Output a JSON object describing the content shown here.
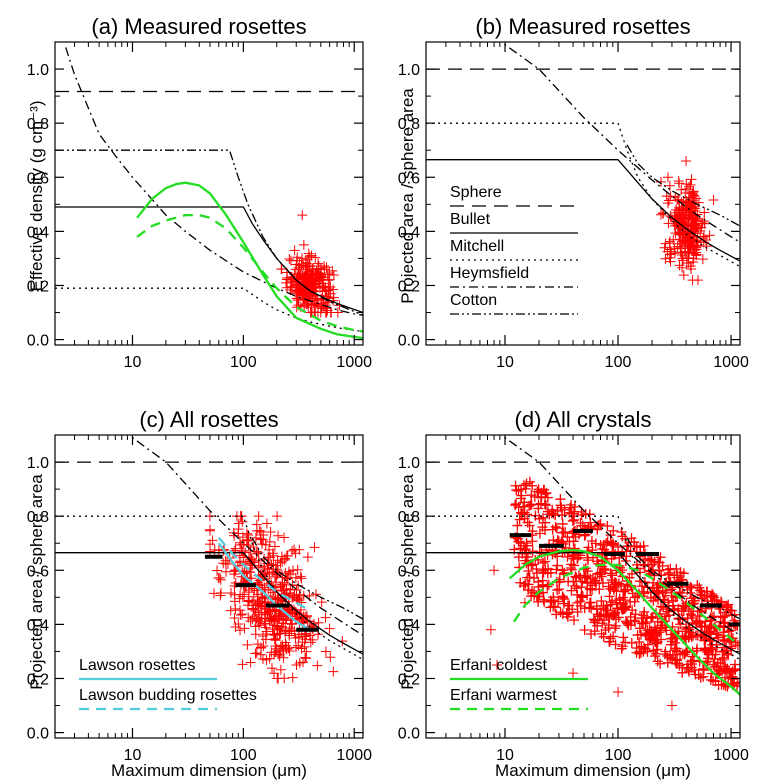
{
  "colors": {
    "axis": "#000000",
    "data_points": "#ff0000",
    "green": "#22dd22",
    "cyan": "#55ccdd",
    "black": "#000000"
  },
  "chart_data": [
    {
      "type": "scatter",
      "title": "(a) Measured rosettes",
      "xlabel": "",
      "ylabel": "Effective density (g cm⁻³)",
      "xscale": "log",
      "xlim": [
        2,
        1200
      ],
      "ylim": [
        -0.02,
        1.1
      ],
      "xticks": [
        10,
        100,
        1000
      ],
      "xtick_labels": [
        "10",
        "100",
        "1000"
      ],
      "yticks": [
        0.0,
        0.2,
        0.4,
        0.6,
        0.8,
        1.0
      ],
      "ytick_labels": [
        "0.0",
        "0.2",
        "0.4",
        "0.6",
        "0.8",
        "1.0"
      ],
      "legend": [],
      "series": [
        {
          "name": "Sphere",
          "style": "longdash",
          "x": [
            2,
            1200
          ],
          "y": [
            0.917,
            0.917
          ]
        },
        {
          "name": "Bullet",
          "style": "solid",
          "x": [
            2,
            100,
            120,
            150,
            200,
            300,
            400,
            600,
            800,
            1200
          ],
          "y": [
            0.49,
            0.49,
            0.43,
            0.37,
            0.3,
            0.22,
            0.18,
            0.145,
            0.125,
            0.1
          ]
        },
        {
          "name": "Mitchell",
          "style": "dotted",
          "x": [
            2,
            100,
            150,
            200,
            300,
            400,
            600,
            800,
            1200
          ],
          "y": [
            0.19,
            0.19,
            0.14,
            0.11,
            0.08,
            0.065,
            0.05,
            0.04,
            0.03
          ]
        },
        {
          "name": "Heymsfield",
          "style": "dashdot",
          "x": [
            2.5,
            3,
            5,
            7,
            10,
            20,
            30,
            50,
            100,
            200,
            300,
            500,
            700,
            1000,
            1200
          ],
          "y": [
            1.08,
            0.98,
            0.76,
            0.68,
            0.6,
            0.46,
            0.4,
            0.33,
            0.25,
            0.19,
            0.16,
            0.13,
            0.11,
            0.095,
            0.09
          ]
        },
        {
          "name": "Cotton",
          "style": "dashdotdot",
          "x": [
            2,
            75,
            90,
            110,
            150,
            200,
            300,
            400,
            600,
            800,
            1200
          ],
          "y": [
            0.7,
            0.7,
            0.6,
            0.5,
            0.38,
            0.3,
            0.22,
            0.18,
            0.14,
            0.12,
            0.09
          ]
        },
        {
          "name": "",
          "style": "solid",
          "color": "green",
          "x": [
            11,
            15,
            20,
            25,
            30,
            40,
            50,
            70,
            100,
            150,
            200,
            300,
            500,
            700,
            1000,
            1200
          ],
          "y": [
            0.45,
            0.52,
            0.56,
            0.575,
            0.58,
            0.57,
            0.54,
            0.46,
            0.36,
            0.24,
            0.16,
            0.08,
            0.04,
            0.02,
            0.01,
            0.005
          ]
        },
        {
          "name": "",
          "style": "dashed",
          "color": "green",
          "x": [
            11,
            15,
            20,
            30,
            40,
            50,
            70,
            100,
            150,
            200,
            300,
            500,
            700,
            1000,
            1200
          ],
          "y": [
            0.38,
            0.42,
            0.44,
            0.46,
            0.46,
            0.45,
            0.41,
            0.34,
            0.25,
            0.19,
            0.12,
            0.07,
            0.05,
            0.035,
            0.03
          ]
        }
      ],
      "scatter_cloud": {
        "x_range": [
          220,
          800
        ],
        "y_range": [
          0.1,
          0.35
        ],
        "center": [
          400,
          0.2
        ],
        "outliers": [
          [
            340,
            0.46
          ],
          [
            290,
            0.33
          ]
        ]
      }
    },
    {
      "type": "scatter",
      "title": "(b) Measured rosettes",
      "xlabel": "",
      "ylabel": "Projected area / sphere area",
      "xscale": "log",
      "xlim": [
        2,
        1200
      ],
      "ylim": [
        -0.02,
        1.1
      ],
      "xticks": [
        10,
        100,
        1000
      ],
      "xtick_labels": [
        "10",
        "100",
        "1000"
      ],
      "yticks": [
        0.0,
        0.2,
        0.4,
        0.6,
        0.8,
        1.0
      ],
      "ytick_labels": [
        "0.0",
        "0.2",
        "0.4",
        "0.6",
        "0.8",
        "1.0"
      ],
      "legend": [
        {
          "label": "Sphere",
          "style": "longdash"
        },
        {
          "label": "Bullet",
          "style": "solid"
        },
        {
          "label": "Mitchell",
          "style": "dotted"
        },
        {
          "label": "Heymsfield",
          "style": "dashdot"
        },
        {
          "label": "Cotton",
          "style": "dashdotdot"
        }
      ],
      "series": [
        {
          "name": "Sphere",
          "style": "longdash",
          "x": [
            2,
            1200
          ],
          "y": [
            1.0,
            1.0
          ]
        },
        {
          "name": "Bullet",
          "style": "solid",
          "x": [
            2,
            100,
            150,
            200,
            300,
            400,
            600,
            800,
            1200
          ],
          "y": [
            0.665,
            0.665,
            0.58,
            0.52,
            0.45,
            0.41,
            0.36,
            0.33,
            0.29
          ]
        },
        {
          "name": "Mitchell",
          "style": "dotted",
          "x": [
            2,
            100,
            120,
            150,
            200,
            300,
            400,
            600,
            1200
          ],
          "y": [
            0.8,
            0.8,
            0.7,
            0.6,
            0.52,
            0.44,
            0.39,
            0.34,
            0.27
          ]
        },
        {
          "name": "Heymsfield",
          "style": "dashdot",
          "x": [
            8,
            10,
            20,
            30,
            50,
            100,
            200,
            300,
            500,
            1000,
            1200
          ],
          "y": [
            1.12,
            1.09,
            1.0,
            0.92,
            0.82,
            0.7,
            0.59,
            0.53,
            0.46,
            0.38,
            0.36
          ]
        },
        {
          "name": "Cotton",
          "style": "dashdotdot",
          "x": [
            120,
            150,
            200,
            300,
            500,
            800,
            1200
          ],
          "y": [
            0.72,
            0.65,
            0.6,
            0.55,
            0.5,
            0.46,
            0.42
          ]
        }
      ],
      "scatter_cloud": {
        "x_range": [
          240,
          700
        ],
        "y_range": [
          0.22,
          0.6
        ],
        "center": [
          400,
          0.42
        ],
        "outliers": [
          [
            400,
            0.66
          ]
        ]
      }
    },
    {
      "type": "scatter",
      "title": "(c) All rosettes",
      "xlabel": "Maximum dimension (μm)",
      "ylabel": "Projected area / sphere area",
      "xscale": "log",
      "xlim": [
        2,
        1200
      ],
      "ylim": [
        -0.02,
        1.1
      ],
      "xticks": [
        10,
        100,
        1000
      ],
      "xtick_labels": [
        "10",
        "100",
        "1000"
      ],
      "yticks": [
        0.0,
        0.2,
        0.4,
        0.6,
        0.8,
        1.0
      ],
      "ytick_labels": [
        "0.0",
        "0.2",
        "0.4",
        "0.6",
        "0.8",
        "1.0"
      ],
      "legend": [
        {
          "label": "Lawson rosettes",
          "style": "solid",
          "color": "cyan"
        },
        {
          "label": "Lawson budding rosettes",
          "style": "dashed",
          "color": "cyan"
        }
      ],
      "series": [
        {
          "name": "Sphere",
          "style": "longdash",
          "x": [
            2,
            1200
          ],
          "y": [
            1.0,
            1.0
          ]
        },
        {
          "name": "Bullet",
          "style": "solid",
          "x": [
            2,
            100,
            150,
            200,
            300,
            400,
            600,
            800,
            1200
          ],
          "y": [
            0.665,
            0.665,
            0.58,
            0.52,
            0.45,
            0.41,
            0.36,
            0.33,
            0.29
          ]
        },
        {
          "name": "Mitchell",
          "style": "dotted",
          "x": [
            2,
            100,
            120,
            150,
            200,
            300,
            400,
            600,
            1200
          ],
          "y": [
            0.8,
            0.8,
            0.7,
            0.6,
            0.52,
            0.44,
            0.39,
            0.34,
            0.27
          ]
        },
        {
          "name": "Heymsfield",
          "style": "dashdot",
          "x": [
            8,
            10,
            20,
            30,
            50,
            100,
            200,
            300,
            500,
            1000,
            1200
          ],
          "y": [
            1.12,
            1.09,
            1.0,
            0.92,
            0.82,
            0.7,
            0.59,
            0.53,
            0.46,
            0.38,
            0.36
          ]
        },
        {
          "name": "Cotton",
          "style": "dashdotdot",
          "x": [
            120,
            150,
            200,
            300,
            500,
            800,
            1200
          ],
          "y": [
            0.72,
            0.65,
            0.6,
            0.55,
            0.5,
            0.46,
            0.42
          ]
        },
        {
          "name": "Lawson rosettes",
          "style": "solid",
          "color": "cyan",
          "x": [
            60,
            80,
            100,
            150,
            200,
            300,
            400
          ],
          "y": [
            0.7,
            0.63,
            0.58,
            0.52,
            0.47,
            0.41,
            0.38
          ]
        },
        {
          "name": "Lawson budding rosettes",
          "style": "dashed",
          "color": "cyan",
          "x": [
            60,
            80,
            100,
            150,
            200,
            300,
            400
          ],
          "y": [
            0.72,
            0.66,
            0.62,
            0.56,
            0.52,
            0.48,
            0.45
          ]
        }
      ],
      "bin_means": [
        {
          "x": [
            45,
            65
          ],
          "y": 0.65
        },
        {
          "x": [
            85,
            130
          ],
          "y": 0.545
        },
        {
          "x": [
            160,
            260
          ],
          "y": 0.47
        },
        {
          "x": [
            300,
            480
          ],
          "y": 0.38
        }
      ],
      "scatter_cloud": {
        "x_range": [
          50,
          800
        ],
        "y_range": [
          0.2,
          0.8
        ],
        "center": [
          180,
          0.5
        ]
      }
    },
    {
      "type": "scatter",
      "title": "(d) All crystals",
      "xlabel": "Maximum dimension (μm)",
      "ylabel": "Projected area / sphere area",
      "xscale": "log",
      "xlim": [
        2,
        1200
      ],
      "ylim": [
        -0.02,
        1.1
      ],
      "xticks": [
        10,
        100,
        1000
      ],
      "xtick_labels": [
        "10",
        "100",
        "1000"
      ],
      "yticks": [
        0.0,
        0.2,
        0.4,
        0.6,
        0.8,
        1.0
      ],
      "ytick_labels": [
        "0.0",
        "0.2",
        "0.4",
        "0.6",
        "0.8",
        "1.0"
      ],
      "legend": [
        {
          "label": "Erfani coldest",
          "style": "solid",
          "color": "green"
        },
        {
          "label": "Erfani warmest",
          "style": "dashed",
          "color": "green"
        }
      ],
      "series": [
        {
          "name": "Sphere",
          "style": "longdash",
          "x": [
            2,
            1200
          ],
          "y": [
            1.0,
            1.0
          ]
        },
        {
          "name": "Bullet",
          "style": "solid",
          "x": [
            2,
            100,
            150,
            200,
            300,
            400,
            600,
            800,
            1200
          ],
          "y": [
            0.665,
            0.665,
            0.58,
            0.52,
            0.45,
            0.41,
            0.36,
            0.33,
            0.29
          ]
        },
        {
          "name": "Mitchell",
          "style": "dotted",
          "x": [
            2,
            100,
            120,
            150,
            200,
            300,
            400,
            600,
            1200
          ],
          "y": [
            0.8,
            0.8,
            0.7,
            0.6,
            0.52,
            0.44,
            0.39,
            0.34,
            0.27
          ]
        },
        {
          "name": "Heymsfield",
          "style": "dashdot",
          "x": [
            8,
            10,
            20,
            30,
            50,
            100,
            200,
            300,
            500,
            1000,
            1200
          ],
          "y": [
            1.12,
            1.09,
            1.0,
            0.92,
            0.82,
            0.7,
            0.59,
            0.53,
            0.46,
            0.38,
            0.36
          ]
        },
        {
          "name": "Cotton",
          "style": "dashdotdot",
          "x": [
            120,
            150,
            200,
            300,
            500,
            800,
            1200
          ],
          "y": [
            0.72,
            0.65,
            0.6,
            0.55,
            0.5,
            0.46,
            0.42
          ]
        },
        {
          "name": "Erfani coldest",
          "style": "solid",
          "color": "green",
          "x": [
            11,
            15,
            20,
            30,
            40,
            50,
            70,
            100,
            150,
            200,
            300,
            500,
            700,
            1000,
            1200
          ],
          "y": [
            0.57,
            0.62,
            0.65,
            0.67,
            0.675,
            0.67,
            0.65,
            0.6,
            0.52,
            0.46,
            0.38,
            0.28,
            0.22,
            0.17,
            0.14
          ]
        },
        {
          "name": "Erfani warmest",
          "style": "dashed",
          "color": "green",
          "x": [
            12,
            15,
            20,
            30,
            50,
            70,
            100,
            150,
            200,
            300,
            500,
            800,
            1200
          ],
          "y": [
            0.41,
            0.47,
            0.52,
            0.57,
            0.61,
            0.62,
            0.62,
            0.6,
            0.57,
            0.52,
            0.45,
            0.38,
            0.32
          ]
        }
      ],
      "bin_means": [
        {
          "x": [
            11,
            17
          ],
          "y": 0.73
        },
        {
          "x": [
            20,
            33
          ],
          "y": 0.69
        },
        {
          "x": [
            40,
            60
          ],
          "y": 0.745
        },
        {
          "x": [
            75,
            115
          ],
          "y": 0.66
        },
        {
          "x": [
            145,
            230
          ],
          "y": 0.66
        },
        {
          "x": [
            270,
            420
          ],
          "y": 0.55
        },
        {
          "x": [
            530,
            830
          ],
          "y": 0.47
        },
        {
          "x": [
            950,
            1200
          ],
          "y": 0.4
        }
      ],
      "scatter_cloud": {
        "x_range": [
          12,
          1150
        ],
        "y_range": [
          0.12,
          0.95
        ],
        "center": [
          80,
          0.5
        ],
        "outliers": [
          [
            8,
            0.6
          ],
          [
            7.5,
            0.38
          ],
          [
            8.5,
            0.25
          ],
          [
            15,
            0.48
          ],
          [
            40,
            0.22
          ],
          [
            300,
            0.1
          ],
          [
            100,
            0.15
          ]
        ]
      }
    }
  ]
}
